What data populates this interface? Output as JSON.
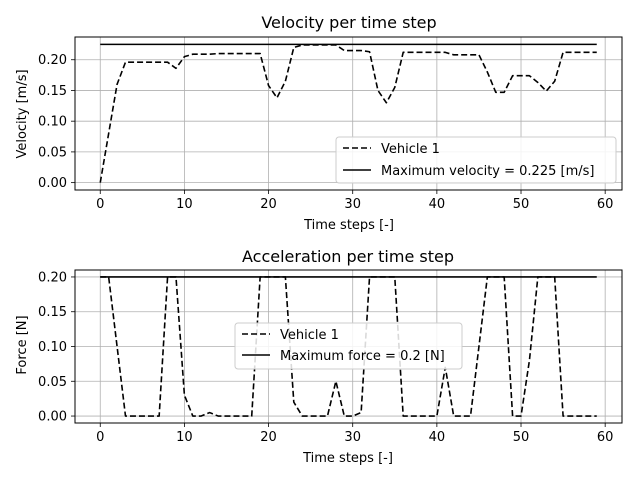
{
  "chart_data": [
    {
      "type": "line",
      "title": "Velocity per time step",
      "xlabel": "Time steps [-]",
      "ylabel": "Velocity [m/s]",
      "xlim": [
        -3,
        62
      ],
      "ylim": [
        -0.012,
        0.237
      ],
      "xticks": [
        "0",
        "10",
        "20",
        "30",
        "40",
        "50",
        "60"
      ],
      "yticks": [
        "0.00",
        "0.05",
        "0.10",
        "0.15",
        "0.20"
      ],
      "grid": true,
      "legend_position": "lower-right",
      "series": [
        {
          "name": "Vehicle 1",
          "style": "dashed",
          "color": "#000000",
          "x": [
            0,
            1,
            2,
            3,
            4,
            5,
            6,
            7,
            8,
            9,
            10,
            11,
            12,
            13,
            14,
            15,
            16,
            17,
            18,
            19,
            20,
            21,
            22,
            23,
            24,
            25,
            26,
            27,
            28,
            29,
            30,
            31,
            32,
            33,
            34,
            35,
            36,
            37,
            38,
            39,
            40,
            41,
            42,
            43,
            44,
            45,
            46,
            47,
            48,
            49,
            50,
            51,
            52,
            53,
            54,
            55,
            56,
            57,
            58,
            59
          ],
          "y": [
            0.0,
            0.08,
            0.16,
            0.196,
            0.196,
            0.196,
            0.196,
            0.196,
            0.196,
            0.186,
            0.205,
            0.209,
            0.209,
            0.209,
            0.21,
            0.21,
            0.21,
            0.21,
            0.21,
            0.21,
            0.158,
            0.138,
            0.165,
            0.22,
            0.224,
            0.224,
            0.224,
            0.224,
            0.224,
            0.215,
            0.215,
            0.215,
            0.213,
            0.15,
            0.13,
            0.155,
            0.212,
            0.212,
            0.212,
            0.212,
            0.212,
            0.212,
            0.208,
            0.208,
            0.208,
            0.208,
            0.18,
            0.147,
            0.147,
            0.174,
            0.174,
            0.174,
            0.163,
            0.149,
            0.165,
            0.212,
            0.212,
            0.212,
            0.212,
            0.212
          ]
        },
        {
          "name": "Maximum velocity = 0.225 [m/s]",
          "style": "solid",
          "color": "#000000",
          "x": [
            0,
            59
          ],
          "y": [
            0.225,
            0.225
          ]
        }
      ]
    },
    {
      "type": "line",
      "title": "Acceleration per time step",
      "xlabel": "Time steps [-]",
      "ylabel": "Force [N]",
      "xlim": [
        -3,
        62
      ],
      "ylim": [
        -0.01,
        0.21
      ],
      "xticks": [
        "0",
        "10",
        "20",
        "30",
        "40",
        "50",
        "60"
      ],
      "yticks": [
        "0.00",
        "0.05",
        "0.10",
        "0.15",
        "0.20"
      ],
      "grid": true,
      "legend_position": "center",
      "series": [
        {
          "name": "Vehicle 1",
          "style": "dashed",
          "color": "#000000",
          "x": [
            0,
            1,
            2,
            3,
            4,
            5,
            6,
            7,
            8,
            9,
            10,
            11,
            12,
            13,
            14,
            15,
            16,
            17,
            18,
            19,
            20,
            21,
            22,
            23,
            24,
            25,
            26,
            27,
            28,
            29,
            30,
            31,
            32,
            33,
            34,
            35,
            36,
            37,
            38,
            39,
            40,
            41,
            42,
            43,
            44,
            45,
            46,
            47,
            48,
            49,
            50,
            51,
            52,
            53,
            54,
            55,
            56,
            57,
            58,
            59
          ],
          "y": [
            0.2,
            0.2,
            0.1,
            0.0,
            0.0,
            0.0,
            0.0,
            0.0,
            0.2,
            0.2,
            0.03,
            0.0,
            0.0,
            0.005,
            0.0,
            0.0,
            0.0,
            0.0,
            0.0,
            0.2,
            0.2,
            0.2,
            0.2,
            0.02,
            0.0,
            0.0,
            0.0,
            0.0,
            0.05,
            0.0,
            0.0,
            0.005,
            0.2,
            0.2,
            0.2,
            0.2,
            0.0,
            0.0,
            0.0,
            0.0,
            0.0,
            0.07,
            0.0,
            0.0,
            0.0,
            0.1,
            0.2,
            0.2,
            0.2,
            0.0,
            0.0,
            0.08,
            0.2,
            0.2,
            0.2,
            0.0,
            0.0,
            0.0,
            0.0,
            0.0
          ]
        },
        {
          "name": "Maximum force = 0.2 [N]",
          "style": "solid",
          "color": "#000000",
          "x": [
            0,
            59
          ],
          "y": [
            0.2,
            0.2
          ]
        }
      ]
    }
  ]
}
